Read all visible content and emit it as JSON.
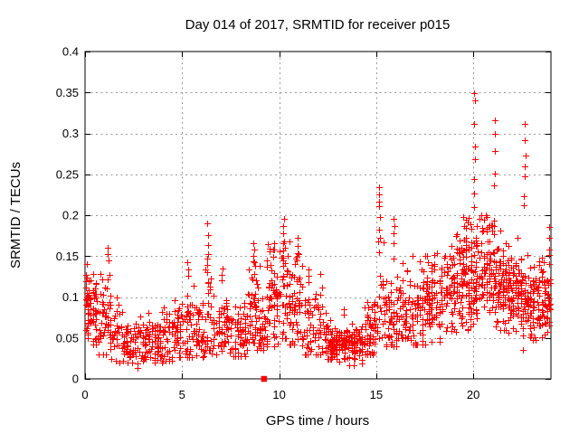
{
  "chart_data": {
    "type": "scatter",
    "title": "Day 014 of 2017, SRMTID for receiver p015",
    "xlabel": "GPS time / hours",
    "ylabel": "SRMTID / TECUs",
    "xlim": [
      0,
      24
    ],
    "ylim": [
      0,
      0.4
    ],
    "xticks": [
      0,
      5,
      10,
      15,
      20
    ],
    "xtick_labels": [
      "0",
      "5",
      "10",
      "15",
      "20"
    ],
    "yticks": [
      0,
      0.05,
      0.1,
      0.15,
      0.2,
      0.25,
      0.3,
      0.35,
      0.4
    ],
    "ytick_labels": [
      "0",
      "0.05",
      "0.1",
      "0.15",
      "0.2",
      "0.25",
      "0.3",
      "0.35",
      "0.4"
    ],
    "grid": true,
    "legend": "none",
    "marker": "plus",
    "marker_color": "#ff0000",
    "grid_color": "#999999",
    "border_color": "#000000",
    "text_color": "#000000",
    "background_color": "#ffffff",
    "note": "Dense scatter (~2000 red plus markers). Point cloud is parameterized from the image as horizontal density bands plus explicit tall spike columns read off the plot.",
    "band_segments_fields": [
      "x_start",
      "x_end",
      "n_points",
      "y_center",
      "y_spread",
      "y_min",
      "y_max"
    ],
    "band_segments": [
      [
        0.0,
        0.18,
        26,
        0.098,
        0.028,
        0.05,
        0.148
      ],
      [
        0.15,
        0.65,
        48,
        0.085,
        0.026,
        0.042,
        0.145
      ],
      [
        0.65,
        1.35,
        55,
        0.068,
        0.028,
        0.03,
        0.152
      ],
      [
        1.35,
        2.2,
        50,
        0.05,
        0.02,
        0.02,
        0.118
      ],
      [
        2.2,
        3.2,
        62,
        0.041,
        0.014,
        0.012,
        0.08
      ],
      [
        3.2,
        3.95,
        55,
        0.046,
        0.016,
        0.02,
        0.09
      ],
      [
        3.95,
        4.75,
        52,
        0.051,
        0.018,
        0.022,
        0.108
      ],
      [
        4.75,
        5.6,
        55,
        0.06,
        0.024,
        0.026,
        0.132
      ],
      [
        5.6,
        6.18,
        40,
        0.055,
        0.02,
        0.026,
        0.1
      ],
      [
        6.2,
        6.5,
        20,
        0.075,
        0.035,
        0.035,
        0.148
      ],
      [
        6.5,
        7.35,
        55,
        0.06,
        0.022,
        0.03,
        0.12
      ],
      [
        7.35,
        8.35,
        62,
        0.056,
        0.019,
        0.028,
        0.1
      ],
      [
        8.35,
        9.0,
        58,
        0.083,
        0.033,
        0.035,
        0.16
      ],
      [
        9.0,
        9.35,
        25,
        0.06,
        0.02,
        0.035,
        0.1
      ],
      [
        9.35,
        10.05,
        62,
        0.092,
        0.034,
        0.04,
        0.165
      ],
      [
        10.05,
        10.4,
        22,
        0.1,
        0.04,
        0.05,
        0.19
      ],
      [
        10.4,
        11.2,
        68,
        0.092,
        0.034,
        0.042,
        0.168
      ],
      [
        11.2,
        12.25,
        62,
        0.062,
        0.024,
        0.03,
        0.132
      ],
      [
        12.25,
        12.7,
        38,
        0.046,
        0.016,
        0.024,
        0.088
      ],
      [
        12.7,
        14.4,
        155,
        0.04,
        0.012,
        0.017,
        0.07
      ],
      [
        14.4,
        15.05,
        52,
        0.056,
        0.019,
        0.03,
        0.102
      ],
      [
        15.05,
        15.5,
        25,
        0.09,
        0.04,
        0.05,
        0.175
      ],
      [
        15.5,
        16.1,
        48,
        0.075,
        0.028,
        0.04,
        0.16
      ],
      [
        16.1,
        16.6,
        42,
        0.09,
        0.032,
        0.05,
        0.162
      ],
      [
        16.6,
        17.6,
        72,
        0.085,
        0.028,
        0.042,
        0.15
      ],
      [
        17.6,
        18.5,
        78,
        0.096,
        0.03,
        0.045,
        0.162
      ],
      [
        18.5,
        19.5,
        98,
        0.115,
        0.033,
        0.055,
        0.192
      ],
      [
        19.5,
        20.3,
        98,
        0.126,
        0.036,
        0.06,
        0.205
      ],
      [
        20.3,
        21.15,
        82,
        0.13,
        0.034,
        0.068,
        0.2
      ],
      [
        21.15,
        21.8,
        72,
        0.114,
        0.033,
        0.06,
        0.215
      ],
      [
        21.8,
        22.55,
        92,
        0.1,
        0.026,
        0.055,
        0.21
      ],
      [
        22.55,
        23.4,
        86,
        0.089,
        0.025,
        0.048,
        0.185
      ],
      [
        23.4,
        23.95,
        56,
        0.096,
        0.028,
        0.05,
        0.188
      ]
    ],
    "spike_columns_fields": [
      "x_hour",
      "y_values"
    ],
    "spike_columns": [
      [
        1.2,
        [
          0.145,
          0.152,
          0.16
        ]
      ],
      [
        5.3,
        [
          0.126,
          0.134,
          0.143
        ]
      ],
      [
        6.33,
        [
          0.19,
          0.176,
          0.164,
          0.153,
          0.147,
          0.139,
          0.13,
          0.118,
          0.105
        ]
      ],
      [
        7.05,
        [
          0.12,
          0.127,
          0.135
        ]
      ],
      [
        8.7,
        [
          0.166,
          0.158,
          0.15,
          0.143
        ]
      ],
      [
        9.7,
        [
          0.166,
          0.158,
          0.149
        ]
      ],
      [
        10.22,
        [
          0.196,
          0.187,
          0.178,
          0.168,
          0.157,
          0.148,
          0.138,
          0.126,
          0.114
        ]
      ],
      [
        10.95,
        [
          0.172,
          0.162,
          0.153,
          0.145
        ]
      ],
      [
        11.5,
        [
          0.134,
          0.126,
          0.118
        ]
      ],
      [
        13.3,
        [
          0.085,
          0.078
        ]
      ],
      [
        15.15,
        [
          0.234,
          0.225,
          0.217,
          0.211,
          0.198,
          0.182,
          0.168,
          0.155
        ]
      ],
      [
        15.9,
        [
          0.196,
          0.187,
          0.178,
          0.166,
          0.147
        ]
      ],
      [
        20.05,
        [
          0.349,
          0.34,
          0.312,
          0.284,
          0.268,
          0.244,
          0.226,
          0.21
        ]
      ],
      [
        21.1,
        [
          0.316,
          0.3,
          0.279,
          0.251,
          0.237
        ]
      ],
      [
        22.6,
        [
          0.035
        ]
      ],
      [
        22.65,
        [
          0.312,
          0.292,
          0.273,
          0.26,
          0.248,
          0.223,
          0.212
        ]
      ],
      [
        23.9,
        [
          0.186,
          0.172,
          0.158
        ]
      ]
    ],
    "special_point": {
      "x": 9.22,
      "y": 0,
      "marker": "filled-square",
      "color": "#ff0000"
    },
    "seed": 42,
    "x_snap_interval_hours": 0.13
  }
}
